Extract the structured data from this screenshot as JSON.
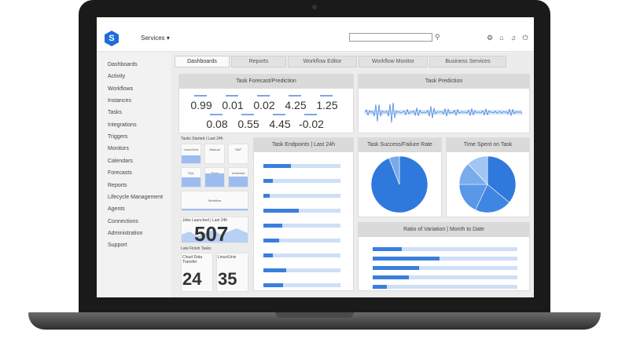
{
  "topbar": {
    "services_label": "Services ▾",
    "search_placeholder": ""
  },
  "sidebar": {
    "items": [
      "Dashboards",
      "Activity",
      "Workflows",
      "Instances",
      "Tasks",
      "Integrations",
      "Triggers",
      "Monitors",
      "Calendars",
      "Forecasts",
      "Reports",
      "Lifecycle Management",
      "Agents",
      "Connections",
      "Administration",
      "Support"
    ]
  },
  "tabs": [
    "Dashboards",
    "Reports",
    "Workflow Editor",
    "Workflow Monitor",
    "Business Services"
  ],
  "forecast": {
    "title": "Task Forecast/Prediction",
    "row1": [
      "0.99",
      "0.01",
      "0.02",
      "4.25",
      "1.25"
    ],
    "row2": [
      "0.08",
      "0.55",
      "4.45",
      "-0.02"
    ]
  },
  "prediction": {
    "title": "Task Prediction"
  },
  "tasks_started": {
    "title": "Tasks Started | Last 24h",
    "tiles": [
      "Linux/Unix",
      "Manual",
      "SAP",
      "SQL",
      "Timer",
      "Universal",
      "Workflow"
    ],
    "tile_fill": [
      0.4,
      0,
      0,
      0.5,
      0.7,
      0.55,
      0.1
    ]
  },
  "jobs_launched": {
    "title": "Jobs Launched | Last 24h",
    "value": "507"
  },
  "late_finish": {
    "title": "Late Finish Tasks",
    "cols": [
      {
        "label": "Cloud Data Transfer",
        "value": "24"
      },
      {
        "label": "Linux/Unix",
        "value": "35"
      }
    ]
  },
  "endpoints": {
    "title": "Task Endpoints | Last 24h",
    "values": [
      0.36,
      0.12,
      0.08,
      0.46,
      0.24,
      0.2,
      0.12,
      0.3,
      0.26
    ]
  },
  "success_rate": {
    "title": "Task Success/Failure Rate",
    "values": [
      0.94,
      0.06
    ]
  },
  "time_spent": {
    "title": "Time Spent on Task",
    "values": [
      0.36,
      0.21,
      0.18,
      0.13,
      0.12
    ]
  },
  "variation": {
    "title": "Ratio of Variation | Month to Date",
    "values": [
      0.2,
      0.46,
      0.32,
      0.25,
      0.1
    ]
  },
  "colors": {
    "accent": "#1e6fd9",
    "bar": "#3a7fdc",
    "track": "#cfdff6"
  }
}
